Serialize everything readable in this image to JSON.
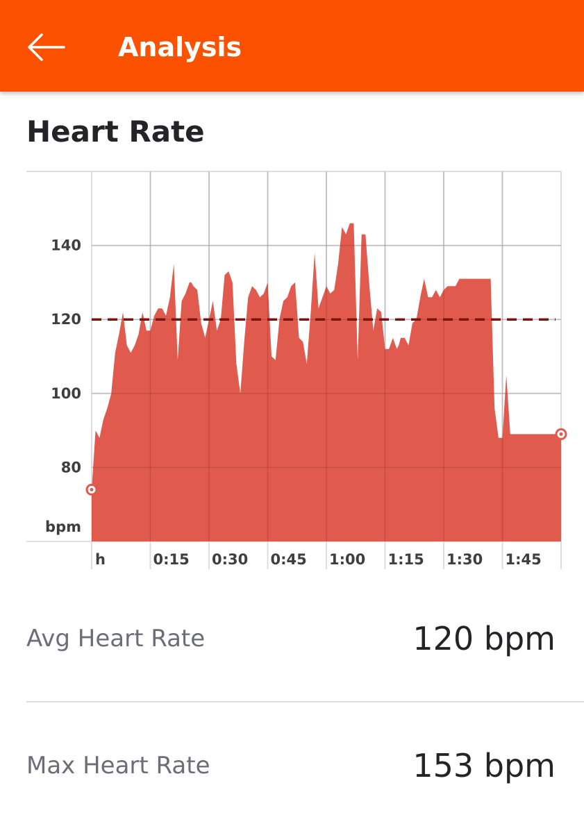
{
  "app_bar": {
    "title": "Analysis",
    "back_icon": "arrow-left-icon",
    "color": "#fc5200"
  },
  "section": {
    "title": "Heart Rate"
  },
  "chart_data": {
    "type": "area",
    "title": "",
    "xlabel": "",
    "ylabel": "bpm",
    "x_unit_label": "h",
    "x_ticks": [
      "0:15",
      "0:30",
      "0:45",
      "1:00",
      "1:15",
      "1:30",
      "1:45"
    ],
    "x_tick_minutes": [
      15,
      30,
      45,
      60,
      75,
      90,
      105
    ],
    "y_ticks": [
      80,
      100,
      120,
      140
    ],
    "xlim": [
      0,
      120
    ],
    "ylim": [
      60,
      160
    ],
    "grid": true,
    "fill_color": "#e05a4d",
    "avg_line_color": "#7a1410",
    "average": 120,
    "series": [
      {
        "x": [
          0,
          1,
          2,
          3,
          4,
          5,
          6,
          7,
          8,
          9,
          10,
          11,
          12,
          13,
          14,
          15,
          16,
          17,
          18,
          19,
          20,
          21,
          22,
          23,
          24,
          25,
          25.5,
          26,
          27,
          28,
          29,
          30,
          31,
          32,
          33,
          34,
          35,
          36,
          37,
          38,
          39,
          40,
          41,
          42,
          43,
          44,
          45,
          46,
          47,
          48,
          49,
          50,
          51,
          52,
          53,
          54,
          55,
          56,
          57,
          58,
          59,
          60,
          61,
          62,
          63,
          64,
          65,
          66,
          67,
          68,
          69,
          70,
          71,
          72,
          73,
          74,
          75,
          76,
          77,
          78,
          78.5,
          79,
          80,
          81,
          82,
          83,
          84,
          85,
          86,
          87,
          88,
          89,
          90,
          91,
          92,
          93,
          94,
          95,
          96,
          97,
          98,
          99,
          100,
          101,
          102,
          103,
          104,
          105,
          106,
          107,
          108,
          109,
          110,
          111,
          112,
          113,
          114,
          115,
          116,
          117,
          118,
          119,
          120
        ],
        "y": [
          74,
          90,
          88,
          93,
          96,
          100,
          111,
          116,
          122,
          113,
          111,
          113,
          116,
          122,
          117,
          117,
          121,
          123,
          123,
          121,
          126,
          135,
          109,
          125,
          127,
          130,
          130,
          129,
          128,
          119,
          115,
          120,
          125,
          117,
          120,
          132,
          133,
          130,
          108,
          100,
          114,
          126,
          129,
          128,
          126,
          127,
          130,
          110,
          109,
          120,
          125,
          126,
          129,
          130,
          115,
          114,
          108,
          122,
          138,
          123,
          126,
          129,
          127,
          128,
          135,
          145,
          143,
          146,
          146,
          109,
          143,
          143,
          129,
          117,
          123,
          122,
          112,
          112,
          115,
          112,
          113,
          115,
          115,
          113,
          119,
          120,
          126,
          131,
          126,
          126,
          128,
          126,
          128,
          129,
          129,
          129,
          131,
          131,
          131,
          131,
          131,
          131,
          131,
          131,
          131,
          96,
          88,
          88,
          105,
          89,
          89,
          89,
          89,
          89,
          89,
          89,
          89,
          89,
          89,
          89,
          89,
          89,
          89
        ]
      }
    ]
  },
  "stats": [
    {
      "label": "Avg Heart Rate",
      "value": "120 bpm"
    },
    {
      "label": "Max Heart Rate",
      "value": "153 bpm"
    }
  ]
}
